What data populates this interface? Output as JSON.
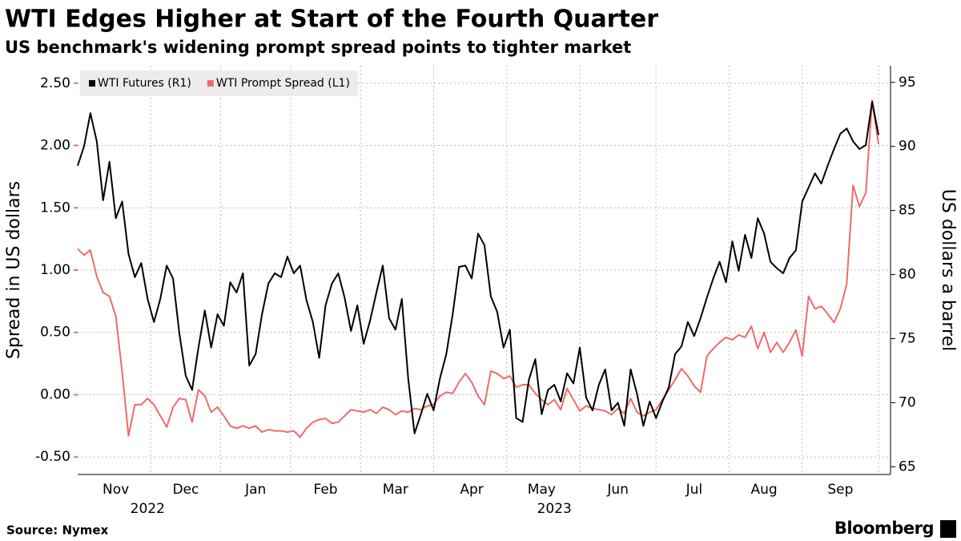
{
  "chart_data": {
    "type": "line",
    "title": "WTI Edges Higher at Start of the Fourth Quarter",
    "subtitle": "US benchmark's widening prompt spread points to tighter market",
    "source": "Source: Nymex",
    "brand": "Bloomberg",
    "ylabel": "Spread in US dollars",
    "y2label": "US dollars a barrel",
    "legend": "upper left",
    "grid": true,
    "categories": [
      null,
      null,
      null,
      null,
      null,
      null,
      "Nov",
      null,
      null,
      null,
      null,
      null,
      null,
      null,
      null,
      null,
      null,
      "Dec",
      null,
      null,
      null,
      null,
      null,
      null,
      null,
      null,
      null,
      null,
      "Jan",
      null,
      null,
      null,
      null,
      null,
      null,
      null,
      null,
      null,
      null,
      "Feb",
      null,
      null,
      null,
      null,
      null,
      null,
      null,
      null,
      null,
      null,
      "Mar",
      null,
      null,
      null,
      null,
      null,
      null,
      null,
      null,
      null,
      null,
      null,
      "Apr",
      null,
      null,
      null,
      null,
      null,
      null,
      null,
      null,
      null,
      null,
      "May",
      null,
      null,
      null,
      null,
      null,
      null,
      null,
      null,
      null,
      null,
      null,
      "Jun",
      null,
      null,
      null,
      null,
      null,
      null,
      null,
      null,
      null,
      null,
      null,
      "Jul",
      null,
      null,
      null,
      null,
      null,
      null,
      null,
      null,
      null,
      null,
      "Aug",
      null,
      null,
      null,
      null,
      null,
      null,
      null,
      null,
      null,
      null,
      null,
      "Sep",
      null,
      null,
      null,
      null,
      null,
      null
    ],
    "year_labels": [
      null,
      null,
      null,
      null,
      null,
      null,
      null,
      null,
      null,
      null,
      null,
      "2022",
      null,
      null,
      null,
      null,
      null,
      null,
      null,
      null,
      null,
      null,
      null,
      null,
      null,
      null,
      null,
      null,
      null,
      null,
      null,
      null,
      null,
      null,
      null,
      null,
      null,
      null,
      null,
      null,
      null,
      null,
      null,
      null,
      null,
      null,
      null,
      null,
      null,
      null,
      null,
      null,
      null,
      null,
      null,
      null,
      null,
      null,
      null,
      null,
      null,
      null,
      null,
      null,
      null,
      null,
      null,
      null,
      null,
      null,
      null,
      null,
      null,
      null,
      null,
      "2023",
      null,
      null,
      null,
      null,
      null,
      null,
      null,
      null,
      null,
      null,
      null,
      null,
      null,
      null,
      null,
      null,
      null,
      null,
      null,
      null,
      null,
      null,
      null,
      null,
      null,
      null,
      null,
      null,
      null,
      null,
      null,
      null,
      null,
      null,
      null,
      null,
      null,
      null,
      null,
      null,
      null,
      null,
      null,
      null,
      null,
      null,
      null,
      null,
      null,
      null,
      null
    ],
    "series": [
      {
        "name": "WTI Futures (R1)",
        "color": "#000000",
        "axis": "y2",
        "values": [
          88.5,
          90.0,
          92.6,
          90.4,
          85.8,
          88.8,
          84.4,
          85.7,
          81.6,
          79.8,
          80.9,
          78.1,
          76.3,
          78.1,
          80.7,
          79.7,
          75.4,
          72.1,
          71.0,
          74.3,
          77.2,
          74.3,
          76.9,
          76.0,
          79.4,
          78.6,
          80.1,
          72.9,
          73.8,
          76.9,
          79.3,
          80.1,
          79.8,
          81.4,
          80.1,
          80.7,
          78.0,
          76.3,
          73.5,
          77.6,
          79.3,
          80.1,
          78.2,
          75.6,
          77.6,
          74.6,
          76.4,
          78.6,
          80.7,
          76.6,
          75.7,
          78.1,
          71.9,
          67.6,
          69.1,
          70.7,
          69.4,
          71.9,
          73.8,
          76.9,
          80.6,
          80.7,
          79.7,
          83.2,
          82.3,
          78.3,
          77.1,
          74.3,
          75.7,
          68.8,
          68.5,
          71.8,
          73.4,
          69.1,
          71.0,
          71.4,
          70.1,
          72.3,
          71.5,
          74.3,
          70.4,
          69.4,
          71.4,
          72.6,
          69.4,
          70.0,
          68.2,
          72.6,
          70.7,
          68.2,
          70.1,
          68.8,
          70.1,
          71.2,
          73.8,
          74.4,
          76.3,
          75.2,
          76.6,
          78.2,
          79.7,
          81.0,
          79.4,
          82.6,
          80.3,
          83.1,
          81.3,
          84.4,
          83.2,
          81.0,
          80.5,
          80.1,
          81.3,
          81.9,
          85.7,
          86.8,
          87.9,
          87.1,
          88.5,
          89.8,
          91.0,
          91.4,
          90.4,
          89.8,
          90.1,
          93.5,
          90.9
        ]
      },
      {
        "name": "WTI Prompt Spread (L1)",
        "color": "#f06a6a",
        "axis": "y",
        "values": [
          1.17,
          1.12,
          1.16,
          0.95,
          0.82,
          0.79,
          0.63,
          0.18,
          -0.33,
          -0.08,
          -0.08,
          -0.03,
          -0.08,
          -0.17,
          -0.26,
          -0.1,
          -0.03,
          -0.04,
          -0.22,
          0.04,
          -0.01,
          -0.14,
          -0.1,
          -0.17,
          -0.25,
          -0.27,
          -0.25,
          -0.27,
          -0.25,
          -0.3,
          -0.28,
          -0.29,
          -0.29,
          -0.3,
          -0.29,
          -0.34,
          -0.27,
          -0.22,
          -0.2,
          -0.19,
          -0.23,
          -0.22,
          -0.17,
          -0.12,
          -0.13,
          -0.14,
          -0.12,
          -0.15,
          -0.1,
          -0.12,
          -0.16,
          -0.13,
          -0.14,
          -0.11,
          -0.12,
          -0.09,
          -0.08,
          -0.01,
          0.02,
          0.01,
          0.1,
          0.17,
          0.1,
          -0.01,
          -0.08,
          0.19,
          0.17,
          0.13,
          0.15,
          0.06,
          0.08,
          0.08,
          0.01,
          -0.04,
          -0.08,
          -0.04,
          -0.12,
          0.05,
          -0.04,
          -0.13,
          -0.09,
          -0.11,
          -0.12,
          -0.13,
          -0.16,
          -0.11,
          -0.15,
          -0.03,
          -0.14,
          -0.17,
          -0.14,
          -0.12,
          -0.04,
          0.04,
          0.12,
          0.21,
          0.15,
          0.07,
          0.02,
          0.31,
          0.37,
          0.42,
          0.46,
          0.44,
          0.48,
          0.46,
          0.55,
          0.37,
          0.5,
          0.34,
          0.42,
          0.34,
          0.42,
          0.52,
          0.31,
          0.79,
          0.69,
          0.71,
          0.65,
          0.58,
          0.69,
          0.89,
          1.68,
          1.51,
          1.62,
          2.36,
          2.01
        ]
      }
    ],
    "ylim": [
      -0.64,
      2.64
    ],
    "yticks": [
      {
        "value": -0.5,
        "label": "-0.50"
      },
      {
        "value": 0,
        "label": "0.00"
      },
      {
        "value": 0.5,
        "label": "0.50"
      },
      {
        "value": 1,
        "label": "1.00"
      },
      {
        "value": 1.5,
        "label": "1.50"
      },
      {
        "value": 2,
        "label": "2.00"
      },
      {
        "value": 2.5,
        "label": "2.50"
      }
    ],
    "y2lim": [
      64.4,
      96.3
    ],
    "y2ticks": [
      65,
      70,
      75,
      80,
      85,
      90,
      95
    ]
  }
}
